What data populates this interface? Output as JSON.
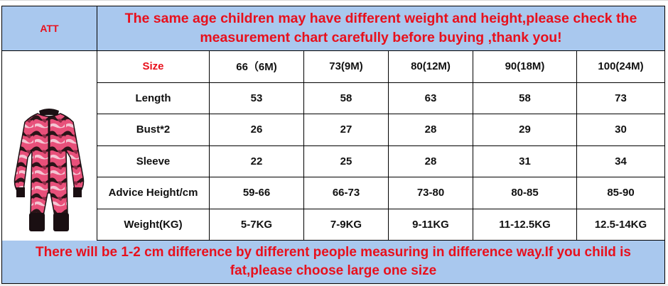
{
  "header": {
    "corner_label": "ATT",
    "notice": "The same age children may have different weight and height,please check the measurement chart carefully before buying ,thank you!"
  },
  "table": {
    "headers": [
      "Size",
      "66（6M)",
      "73(9M)",
      "80(12M)",
      "90(18M)",
      "100(24M)"
    ],
    "rows": [
      [
        "Length",
        "53",
        "58",
        "63",
        "58",
        "73"
      ],
      [
        "Bust*2",
        "26",
        "27",
        "28",
        "29",
        "30"
      ],
      [
        "Sleeve",
        "22",
        "25",
        "28",
        "31",
        "34"
      ],
      [
        "Advice Height/cm",
        "59-66",
        "66-73",
        "73-80",
        "80-85",
        "85-90"
      ],
      [
        "Weight(KG)",
        "5-7KG",
        "7-9KG",
        "9-11KG",
        "11-12.5KG",
        "12.5-14KG"
      ]
    ]
  },
  "footer": {
    "notice": "There will be 1-2 cm difference by different people measuring in difference way.If you child is fat,please choose large one size"
  },
  "colors": {
    "accent_red": "#e8101c",
    "header_blue": "#a9c8ee"
  },
  "icons": {
    "product": "baby-romper-icon"
  }
}
